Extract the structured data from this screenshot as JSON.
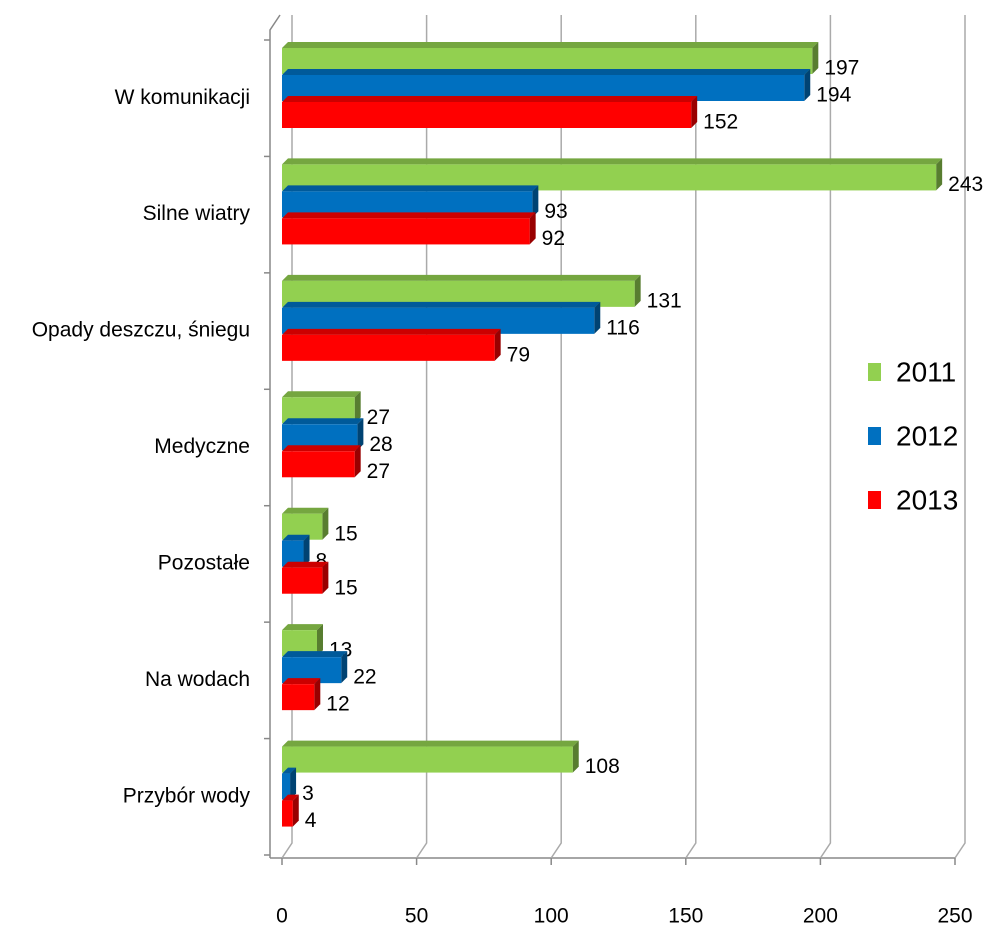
{
  "chart_data": {
    "type": "hbar3d",
    "categories": [
      "W komunikacji",
      "Silne wiatry",
      "Opady deszczu, śniegu",
      "Medyczne",
      "Pozostałe",
      "Na wodach",
      "Przybór wody"
    ],
    "series": [
      {
        "name": "2011",
        "color": "#92d050",
        "values": [
          197,
          243,
          131,
          27,
          15,
          13,
          108
        ]
      },
      {
        "name": "2012",
        "color": "#0070c0",
        "values": [
          194,
          93,
          116,
          28,
          8,
          22,
          3
        ]
      },
      {
        "name": "2013",
        "color": "#ff0000",
        "values": [
          152,
          92,
          79,
          27,
          15,
          12,
          4
        ]
      }
    ],
    "xlim": [
      0,
      250
    ],
    "xticks": [
      0,
      50,
      100,
      150,
      200,
      250
    ],
    "grid": true,
    "legend": "right"
  }
}
